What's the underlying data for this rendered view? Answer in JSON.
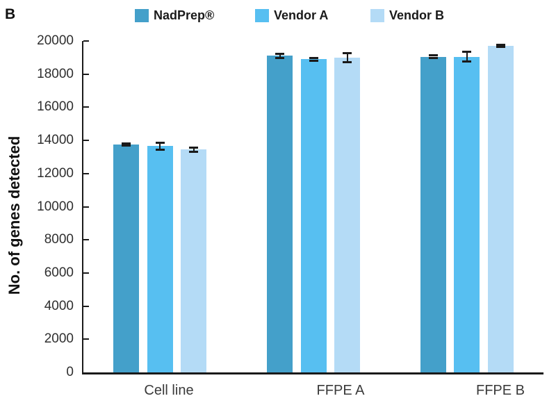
{
  "panel_label": "B",
  "legend": {
    "items": [
      {
        "label": "NadPrep®",
        "color": "#44A0CA"
      },
      {
        "label": "Vendor A",
        "color": "#57BFF1"
      },
      {
        "label": "Vendor B",
        "color": "#B4DBF6"
      }
    ]
  },
  "chart_data": {
    "type": "bar",
    "title": "",
    "xlabel": "",
    "ylabel": "No. of genes detected",
    "categories": [
      "Cell line",
      "FFPE A",
      "FFPE B"
    ],
    "series": [
      {
        "name": "NadPrep®",
        "color": "#44A0CA",
        "values": [
          13750,
          19100,
          19050
        ],
        "errors": [
          60,
          120,
          70
        ]
      },
      {
        "name": "Vendor A",
        "color": "#57BFF1",
        "values": [
          13650,
          18900,
          19050
        ],
        "errors": [
          200,
          80,
          280
        ]
      },
      {
        "name": "Vendor B",
        "color": "#B4DBF6",
        "values": [
          13450,
          19000,
          19700
        ],
        "errors": [
          120,
          260,
          60
        ]
      }
    ],
    "ylim": [
      0,
      20000
    ],
    "yticks": [
      0,
      2000,
      4000,
      6000,
      8000,
      10000,
      12000,
      14000,
      16000,
      18000,
      20000
    ],
    "grid": false,
    "error_bars": true,
    "legend_position": "top"
  }
}
